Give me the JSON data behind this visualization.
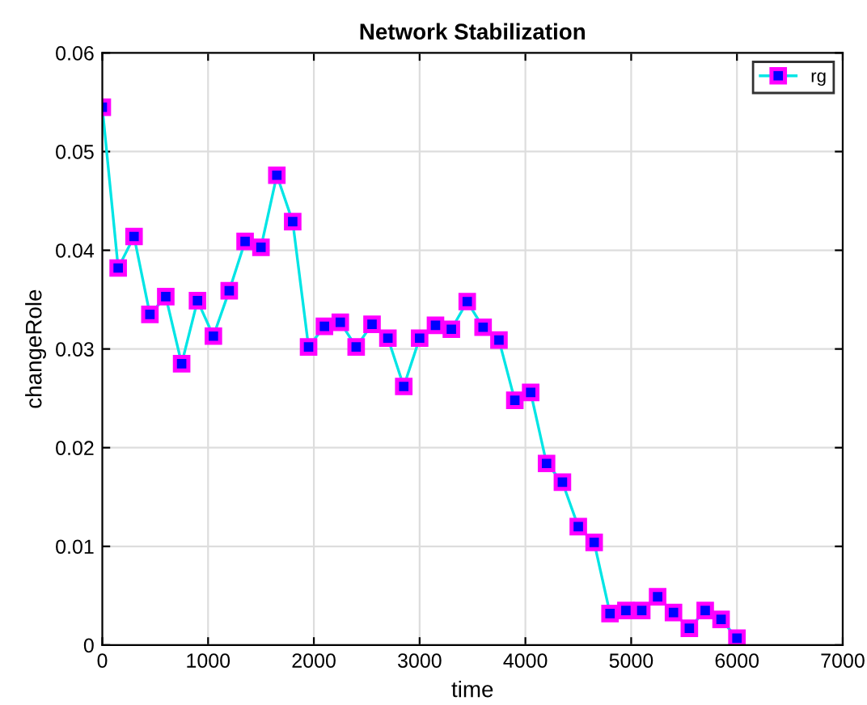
{
  "chart_data": {
    "type": "line",
    "title": "Network Stabilization",
    "xlabel": "time",
    "ylabel": "changeRole",
    "x": [
      0,
      150,
      300,
      450,
      600,
      750,
      900,
      1050,
      1200,
      1350,
      1500,
      1650,
      1800,
      1950,
      2100,
      2250,
      2400,
      2550,
      2700,
      2850,
      3000,
      3150,
      3300,
      3450,
      3600,
      3750,
      3900,
      4050,
      4200,
      4350,
      4500,
      4650,
      4800,
      4950,
      5100,
      5250,
      5400,
      5550,
      5700,
      5850,
      6000
    ],
    "series": [
      {
        "name": "rg",
        "color": "#00e5e5",
        "values": [
          0.0545,
          0.0382,
          0.0414,
          0.0335,
          0.0353,
          0.0285,
          0.0349,
          0.0313,
          0.0359,
          0.0409,
          0.0403,
          0.0476,
          0.0429,
          0.0302,
          0.0323,
          0.0327,
          0.0302,
          0.0325,
          0.0311,
          0.0262,
          0.0311,
          0.0324,
          0.032,
          0.0348,
          0.0322,
          0.0309,
          0.0248,
          0.0256,
          0.0184,
          0.0165,
          0.012,
          0.0104,
          0.0032,
          0.0035,
          0.0035,
          0.0049,
          0.0033,
          0.0017,
          0.0035,
          0.0026,
          0.0007
        ]
      }
    ],
    "xlim": [
      0,
      7000
    ],
    "xticks": [
      0,
      1000,
      2000,
      3000,
      4000,
      5000,
      6000,
      7000
    ],
    "ylim": [
      0,
      0.06
    ],
    "yticks": [
      0,
      0.01,
      0.02,
      0.03,
      0.04,
      0.05,
      0.06
    ],
    "grid": true,
    "legend": "top right",
    "marker": "square",
    "line_style": "solid"
  }
}
